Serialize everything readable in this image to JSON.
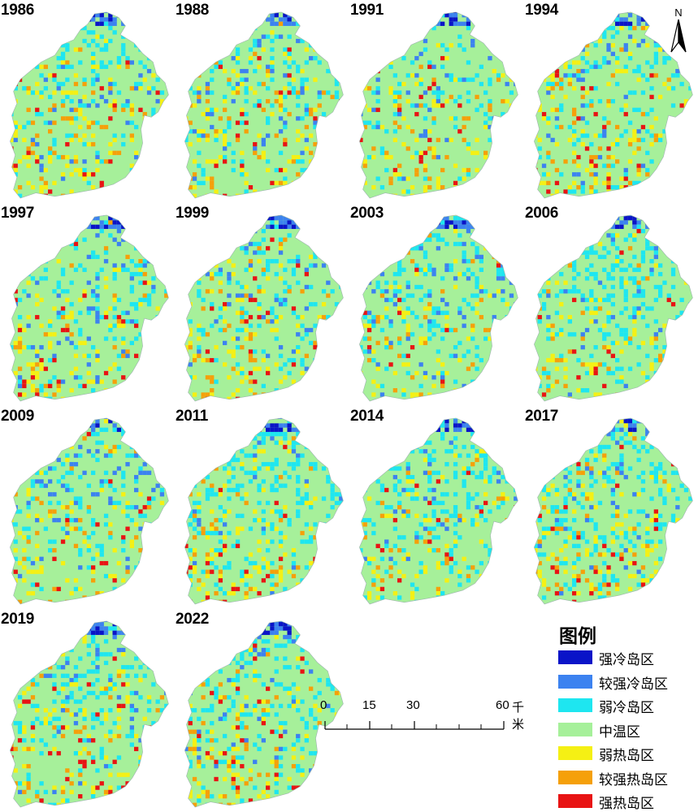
{
  "panels": [
    {
      "year": "1986",
      "col": 0,
      "row": 0,
      "profile": {
        "cool": 0.35,
        "hot": 0.3,
        "blue": 0.1
      }
    },
    {
      "year": "1988",
      "col": 1,
      "row": 0,
      "profile": {
        "cool": 0.35,
        "hot": 0.32,
        "blue": 0.12
      }
    },
    {
      "year": "1991",
      "col": 2,
      "row": 0,
      "profile": {
        "cool": 0.25,
        "hot": 0.25,
        "blue": 0.15
      }
    },
    {
      "year": "1994",
      "col": 3,
      "row": 0,
      "profile": {
        "cool": 0.35,
        "hot": 0.3,
        "blue": 0.12
      }
    },
    {
      "year": "1997",
      "col": 0,
      "row": 1,
      "profile": {
        "cool": 0.35,
        "hot": 0.28,
        "blue": 0.14
      }
    },
    {
      "year": "1999",
      "col": 1,
      "row": 1,
      "profile": {
        "cool": 0.35,
        "hot": 0.25,
        "blue": 0.12
      }
    },
    {
      "year": "2003",
      "col": 2,
      "row": 1,
      "profile": {
        "cool": 0.42,
        "hot": 0.22,
        "blue": 0.12
      }
    },
    {
      "year": "2006",
      "col": 3,
      "row": 1,
      "profile": {
        "cool": 0.45,
        "hot": 0.22,
        "blue": 0.06
      }
    },
    {
      "year": "2009",
      "col": 0,
      "row": 2,
      "profile": {
        "cool": 0.4,
        "hot": 0.26,
        "blue": 0.12
      }
    },
    {
      "year": "2011",
      "col": 1,
      "row": 2,
      "profile": {
        "cool": 0.48,
        "hot": 0.24,
        "blue": 0.05
      }
    },
    {
      "year": "2014",
      "col": 2,
      "row": 2,
      "profile": {
        "cool": 0.45,
        "hot": 0.26,
        "blue": 0.06
      }
    },
    {
      "year": "2017",
      "col": 3,
      "row": 2,
      "profile": {
        "cool": 0.45,
        "hot": 0.26,
        "blue": 0.05
      }
    },
    {
      "year": "2019",
      "col": 0,
      "row": 3,
      "profile": {
        "cool": 0.42,
        "hot": 0.26,
        "blue": 0.08
      }
    },
    {
      "year": "2022",
      "col": 1,
      "row": 3,
      "profile": {
        "cool": 0.45,
        "hot": 0.24,
        "blue": 0.06
      }
    }
  ],
  "north_arrow": {
    "label": "N"
  },
  "legend": {
    "title": "图例",
    "items": [
      {
        "label": "强冷岛区",
        "color": "#0a14c8"
      },
      {
        "label": "较强冷岛区",
        "color": "#3c82f0"
      },
      {
        "label": "弱冷岛区",
        "color": "#1ee6f0"
      },
      {
        "label": "中温区",
        "color": "#a6f09a"
      },
      {
        "label": "弱热岛区",
        "color": "#f5f014"
      },
      {
        "label": "较强热岛区",
        "color": "#f5a00a"
      },
      {
        "label": "强热岛区",
        "color": "#e81414"
      }
    ]
  },
  "scale_bar": {
    "ticks": [
      "0",
      "15",
      "30",
      "60"
    ],
    "unit": "千米"
  }
}
